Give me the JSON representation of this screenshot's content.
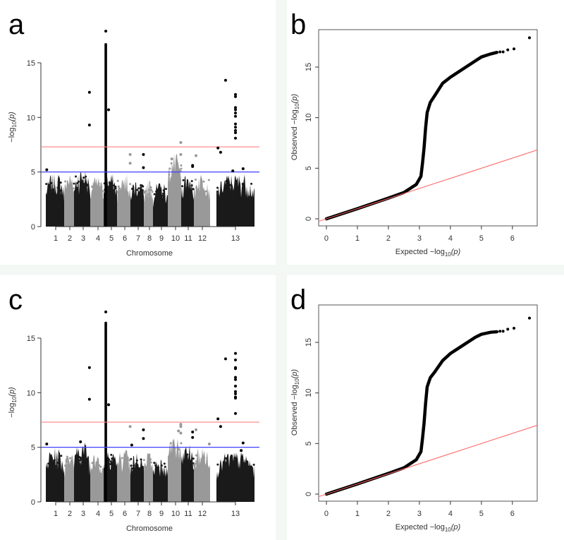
{
  "chart_data": [
    {
      "panel_label": "a",
      "type": "scatter",
      "subtype": "manhattan",
      "xlabel": "Chromosome",
      "ylabel": {
        "prefix": "−log",
        "sub": "10",
        "suffix": "(p)"
      },
      "yticks": [
        0,
        5,
        10,
        15
      ],
      "ylim": [
        0,
        18
      ],
      "grid": false,
      "colors": {
        "odd": "#1a1a1a",
        "even": "#999999"
      },
      "thresholds": [
        {
          "y": 7.3,
          "color": "#ff8080"
        },
        {
          "y": 5.0,
          "color": "#4040ff"
        }
      ],
      "chromosomes": [
        {
          "label": "1",
          "background_max": 4.2
        },
        {
          "label": "2",
          "background_max": 4.3
        },
        {
          "label": "3",
          "background_max": 4.6
        },
        {
          "label": "4",
          "background_max": 4.0
        },
        {
          "label": "5",
          "background_max": 4.2
        },
        {
          "label": "6",
          "background_max": 4.2
        },
        {
          "label": "7",
          "background_max": 3.8
        },
        {
          "label": "8",
          "background_max": 3.8
        },
        {
          "label": "9",
          "background_max": 3.5
        },
        {
          "label": "10",
          "background_max": 5.8
        },
        {
          "label": "11",
          "background_max": 4.3
        },
        {
          "label": "12",
          "background_max": 4.3
        },
        {
          "label": "13",
          "background_max": 4.2
        }
      ],
      "dense_column": {
        "chr": "5",
        "pos": 0.16,
        "top": 16.8
      },
      "points": [
        {
          "chr": "1",
          "pos": 0.05,
          "y": 5.2
        },
        {
          "chr": "3",
          "pos": 0.95,
          "y": 12.3
        },
        {
          "chr": "3",
          "pos": 0.95,
          "y": 9.3
        },
        {
          "chr": "5",
          "pos": 0.16,
          "y": 17.9
        },
        {
          "chr": "5",
          "pos": 0.37,
          "y": 10.7
        },
        {
          "chr": "6",
          "pos": 0.98,
          "y": 6.6
        },
        {
          "chr": "6",
          "pos": 0.98,
          "y": 5.8
        },
        {
          "chr": "7",
          "pos": 0.97,
          "y": 6.6
        },
        {
          "chr": "7",
          "pos": 0.97,
          "y": 5.4
        },
        {
          "chr": "10",
          "pos": 0.97,
          "y": 7.7
        },
        {
          "chr": "10",
          "pos": 0.97,
          "y": 6.6
        },
        {
          "chr": "10",
          "pos": 0.3,
          "y": 6.2
        },
        {
          "chr": "11",
          "pos": 0.9,
          "y": 5.6
        },
        {
          "chr": "11",
          "pos": 0.9,
          "y": 5.5
        },
        {
          "chr": "12",
          "pos": 0.13,
          "y": 6.5
        },
        {
          "chr": "13",
          "pos": 0.04,
          "y": 7.2
        },
        {
          "chr": "13",
          "pos": 0.11,
          "y": 6.8
        },
        {
          "chr": "13",
          "pos": 0.24,
          "y": 13.4
        },
        {
          "chr": "13",
          "pos": 0.5,
          "y": 12.1
        },
        {
          "chr": "13",
          "pos": 0.5,
          "y": 11.9
        },
        {
          "chr": "13",
          "pos": 0.5,
          "y": 10.9
        },
        {
          "chr": "13",
          "pos": 0.5,
          "y": 10.7
        },
        {
          "chr": "13",
          "pos": 0.5,
          "y": 10.4
        },
        {
          "chr": "13",
          "pos": 0.5,
          "y": 10.1
        },
        {
          "chr": "13",
          "pos": 0.5,
          "y": 9.4
        },
        {
          "chr": "13",
          "pos": 0.5,
          "y": 9.1
        },
        {
          "chr": "13",
          "pos": 0.5,
          "y": 8.8
        },
        {
          "chr": "13",
          "pos": 0.5,
          "y": 8.6
        },
        {
          "chr": "13",
          "pos": 0.5,
          "y": 8.1
        },
        {
          "chr": "13",
          "pos": 0.43,
          "y": 5.1
        },
        {
          "chr": "13",
          "pos": 0.7,
          "y": 5.3
        }
      ]
    },
    {
      "panel_label": "b",
      "type": "scatter",
      "subtype": "qq",
      "xlabel": {
        "prefix": "Expected  −log",
        "sub": "10",
        "suffix": "(p)"
      },
      "ylabel": {
        "prefix": "Observed  −log",
        "sub": "10",
        "suffix": "(p)"
      },
      "xticks": [
        0,
        1,
        2,
        3,
        4,
        5,
        6
      ],
      "yticks": [
        0,
        5,
        10,
        15
      ],
      "xlim": [
        -0.25,
        6.8
      ],
      "ylim": [
        -0.7,
        18.7
      ],
      "grid": false,
      "reference_line": {
        "slope": 1,
        "intercept": 0,
        "color": "#ff6060"
      },
      "curve": [
        [
          0,
          0
        ],
        [
          1,
          1
        ],
        [
          2,
          2.05
        ],
        [
          2.5,
          2.6
        ],
        [
          2.9,
          3.4
        ],
        [
          3.05,
          4.2
        ],
        [
          3.1,
          5.5
        ],
        [
          3.15,
          7
        ],
        [
          3.2,
          9
        ],
        [
          3.25,
          10.5
        ],
        [
          3.35,
          11.5
        ],
        [
          3.5,
          12.2
        ],
        [
          3.75,
          13.4
        ],
        [
          4,
          14
        ],
        [
          4.3,
          14.6
        ],
        [
          4.6,
          15.2
        ],
        [
          4.8,
          15.6
        ],
        [
          5,
          16
        ],
        [
          5.3,
          16.3
        ],
        [
          5.5,
          16.45
        ]
      ],
      "points": [
        [
          5.6,
          16.5
        ],
        [
          5.7,
          16.5
        ],
        [
          5.85,
          16.7
        ],
        [
          6.05,
          16.8
        ],
        [
          6.55,
          17.9
        ]
      ]
    },
    {
      "panel_label": "c",
      "type": "scatter",
      "subtype": "manhattan",
      "xlabel": "Chromosome",
      "ylabel": {
        "prefix": "−log",
        "sub": "10",
        "suffix": "(p)"
      },
      "yticks": [
        0,
        5,
        10,
        15
      ],
      "ylim": [
        0,
        18
      ],
      "grid": false,
      "colors": {
        "odd": "#1a1a1a",
        "even": "#999999"
      },
      "thresholds": [
        {
          "y": 7.3,
          "color": "#ff8080"
        },
        {
          "y": 5.0,
          "color": "#4040ff"
        }
      ],
      "chromosomes": [
        {
          "label": "1",
          "background_max": 4.3
        },
        {
          "label": "2",
          "background_max": 4.2
        },
        {
          "label": "3",
          "background_max": 4.8
        },
        {
          "label": "4",
          "background_max": 3.8
        },
        {
          "label": "5",
          "background_max": 4.4
        },
        {
          "label": "6",
          "background_max": 4.2
        },
        {
          "label": "7",
          "background_max": 4.0
        },
        {
          "label": "8",
          "background_max": 4.0
        },
        {
          "label": "9",
          "background_max": 3.6
        },
        {
          "label": "10",
          "background_max": 5.5
        },
        {
          "label": "11",
          "background_max": 4.6
        },
        {
          "label": "12",
          "background_max": 4.4
        },
        {
          "label": "13",
          "background_max": 4.0
        }
      ],
      "dense_column": {
        "chr": "5",
        "pos": 0.16,
        "top": 16.5
      },
      "points": [
        {
          "chr": "1",
          "pos": 0.05,
          "y": 5.3
        },
        {
          "chr": "3",
          "pos": 0.4,
          "y": 5.5
        },
        {
          "chr": "3",
          "pos": 0.95,
          "y": 12.3
        },
        {
          "chr": "3",
          "pos": 0.95,
          "y": 9.4
        },
        {
          "chr": "5",
          "pos": 0.16,
          "y": 17.4
        },
        {
          "chr": "5",
          "pos": 0.37,
          "y": 8.9
        },
        {
          "chr": "6",
          "pos": 0.98,
          "y": 6.9
        },
        {
          "chr": "7",
          "pos": 0.1,
          "y": 5.2
        },
        {
          "chr": "7",
          "pos": 0.97,
          "y": 6.6
        },
        {
          "chr": "7",
          "pos": 0.97,
          "y": 5.8
        },
        {
          "chr": "10",
          "pos": 0.97,
          "y": 7.1
        },
        {
          "chr": "10",
          "pos": 0.97,
          "y": 6.9
        },
        {
          "chr": "10",
          "pos": 0.8,
          "y": 6.5
        },
        {
          "chr": "10",
          "pos": 0.97,
          "y": 6.3
        },
        {
          "chr": "11",
          "pos": 0.9,
          "y": 6.4
        },
        {
          "chr": "11",
          "pos": 0.9,
          "y": 5.9
        },
        {
          "chr": "12",
          "pos": 0.13,
          "y": 6.6
        },
        {
          "chr": "12",
          "pos": 0.95,
          "y": 5.3
        },
        {
          "chr": "13",
          "pos": 0.04,
          "y": 7.6
        },
        {
          "chr": "13",
          "pos": 0.11,
          "y": 6.9
        },
        {
          "chr": "13",
          "pos": 0.24,
          "y": 13.1
        },
        {
          "chr": "13",
          "pos": 0.5,
          "y": 13.6
        },
        {
          "chr": "13",
          "pos": 0.5,
          "y": 13.0
        },
        {
          "chr": "13",
          "pos": 0.5,
          "y": 12.3
        },
        {
          "chr": "13",
          "pos": 0.5,
          "y": 12.2
        },
        {
          "chr": "13",
          "pos": 0.5,
          "y": 11.4
        },
        {
          "chr": "13",
          "pos": 0.5,
          "y": 11.2
        },
        {
          "chr": "13",
          "pos": 0.5,
          "y": 10.6
        },
        {
          "chr": "13",
          "pos": 0.5,
          "y": 10.1
        },
        {
          "chr": "13",
          "pos": 0.5,
          "y": 9.9
        },
        {
          "chr": "13",
          "pos": 0.5,
          "y": 9.6
        },
        {
          "chr": "13",
          "pos": 0.5,
          "y": 9.5
        },
        {
          "chr": "13",
          "pos": 0.5,
          "y": 8.1
        },
        {
          "chr": "13",
          "pos": 0.65,
          "y": 4.7
        },
        {
          "chr": "13",
          "pos": 0.7,
          "y": 5.4
        }
      ]
    },
    {
      "panel_label": "d",
      "type": "scatter",
      "subtype": "qq",
      "xlabel": {
        "prefix": "Expected  −log",
        "sub": "10",
        "suffix": "(p)"
      },
      "ylabel": {
        "prefix": "Observed  −log",
        "sub": "10",
        "suffix": "(p)"
      },
      "xticks": [
        0,
        1,
        2,
        3,
        4,
        5,
        6
      ],
      "yticks": [
        0,
        5,
        10,
        15
      ],
      "xlim": [
        -0.25,
        6.8
      ],
      "ylim": [
        -0.7,
        18.7
      ],
      "grid": false,
      "reference_line": {
        "slope": 1,
        "intercept": 0,
        "color": "#ff6060"
      },
      "curve": [
        [
          0,
          0
        ],
        [
          1,
          1
        ],
        [
          2,
          2.05
        ],
        [
          2.5,
          2.6
        ],
        [
          2.9,
          3.4
        ],
        [
          3.05,
          4.2
        ],
        [
          3.1,
          5.5
        ],
        [
          3.15,
          7
        ],
        [
          3.2,
          9
        ],
        [
          3.25,
          10.6
        ],
        [
          3.35,
          11.5
        ],
        [
          3.5,
          12.1
        ],
        [
          3.75,
          13.2
        ],
        [
          4,
          13.9
        ],
        [
          4.3,
          14.5
        ],
        [
          4.6,
          15.1
        ],
        [
          4.8,
          15.5
        ],
        [
          5,
          15.8
        ],
        [
          5.3,
          16.0
        ],
        [
          5.5,
          16.05
        ]
      ],
      "points": [
        [
          5.6,
          16.1
        ],
        [
          5.7,
          16.1
        ],
        [
          5.85,
          16.3
        ],
        [
          6.05,
          16.4
        ],
        [
          6.55,
          17.4
        ]
      ]
    }
  ]
}
